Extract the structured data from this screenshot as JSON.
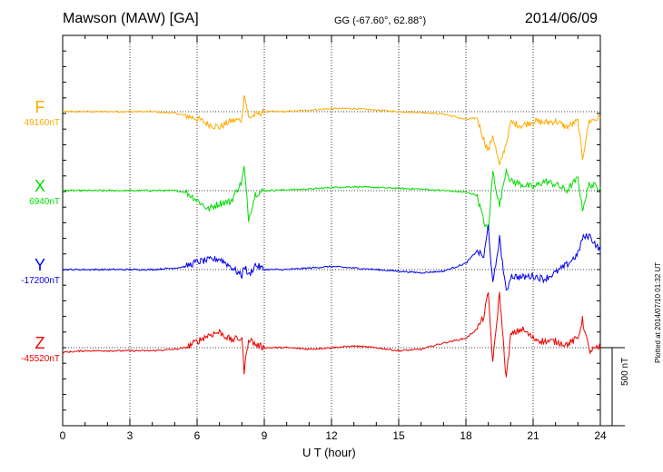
{
  "header": {
    "title": "Mawson (MAW)  [GA]",
    "coords": "GG (-67.60°,  62.88°)",
    "date": "2014/06/09"
  },
  "footer": {
    "plotted": "Plotted at 2014/07/10 01:32 UT"
  },
  "chart_data": {
    "type": "line",
    "title": "Mawson (MAW)  [GA]",
    "xlabel": "U T (hour)",
    "ylabel": "",
    "xlim": [
      0,
      24
    ],
    "x_ticks": [
      "0",
      "3",
      "6",
      "9",
      "12",
      "15",
      "18",
      "21",
      "24"
    ],
    "scale_bar_label": "500 nT",
    "x": [
      0,
      1,
      2,
      3,
      4,
      5,
      5.5,
      6,
      6.5,
      7,
      7.5,
      8,
      8.1,
      8.3,
      8.6,
      9,
      10,
      11,
      12,
      13,
      14,
      15,
      16,
      17,
      18,
      18.5,
      18.8,
      19,
      19.2,
      19.5,
      19.8,
      20,
      20.5,
      21,
      21.5,
      22,
      22.5,
      23,
      23.2,
      23.5,
      24
    ],
    "series": [
      {
        "name": "F",
        "baseline": "49160nT",
        "color": "#ffaa00",
        "values": [
          0,
          0,
          0,
          0,
          0,
          -10,
          -25,
          -45,
          -80,
          -100,
          -60,
          -50,
          120,
          -40,
          -20,
          0,
          0,
          10,
          20,
          20,
          10,
          0,
          -5,
          -15,
          -50,
          -40,
          -180,
          -250,
          -150,
          -350,
          -200,
          -70,
          -90,
          -60,
          -70,
          -60,
          -100,
          -60,
          -300,
          -60,
          -40
        ]
      },
      {
        "name": "X",
        "baseline": "6940nT",
        "color": "#00dd00",
        "values": [
          0,
          0,
          0,
          0,
          0,
          0,
          -10,
          -60,
          -120,
          -80,
          -70,
          60,
          150,
          -180,
          -20,
          0,
          5,
          10,
          20,
          25,
          20,
          15,
          10,
          0,
          -10,
          -30,
          -200,
          -260,
          120,
          -100,
          140,
          60,
          40,
          20,
          60,
          40,
          0,
          80,
          -120,
          40,
          20
        ]
      },
      {
        "name": "Y",
        "baseline": "-17200nT",
        "color": "#0000ee",
        "values": [
          0,
          0,
          0,
          0,
          0,
          10,
          20,
          50,
          60,
          70,
          20,
          -40,
          30,
          -40,
          30,
          0,
          0,
          10,
          20,
          10,
          0,
          -10,
          -20,
          -10,
          40,
          120,
          80,
          280,
          -100,
          200,
          -150,
          -40,
          -50,
          -40,
          -60,
          -20,
          30,
          100,
          200,
          220,
          120
        ]
      },
      {
        "name": "Z",
        "baseline": "-45520nT",
        "color": "#ee0000",
        "values": [
          -30,
          -20,
          -20,
          -20,
          -20,
          -10,
          0,
          40,
          80,
          100,
          50,
          60,
          -150,
          60,
          20,
          0,
          0,
          -10,
          0,
          10,
          0,
          -20,
          -10,
          30,
          60,
          120,
          200,
          350,
          -100,
          350,
          -200,
          80,
          120,
          60,
          40,
          40,
          20,
          60,
          180,
          -20,
          0
        ]
      }
    ]
  }
}
